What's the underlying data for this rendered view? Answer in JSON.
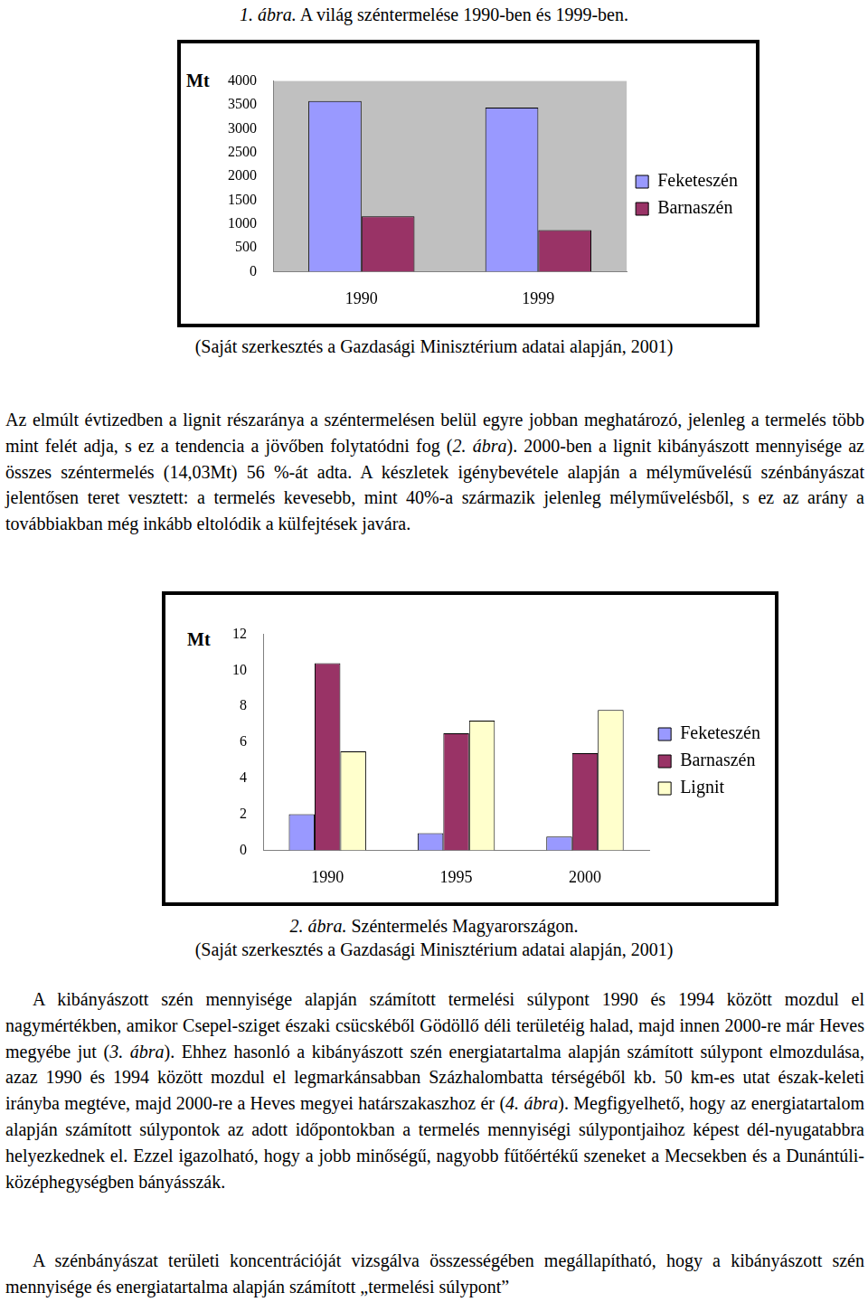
{
  "document": {
    "figure1_caption": [
      {
        "italic": "1.   ábra."
      },
      " A világ széntermelése 1990-ben és 1999-ben."
    ],
    "figure1_source": "(Saját szerkesztés a Gazdasági Minisztérium adatai alapján, 2001)",
    "paragraph1": [
      "Az elmúlt évtizedben a lignit részaránya a széntermelésen belül egyre jobban meghatározó, jelenleg a termelés több mint felét adja, s ez a tendencia a jövőben folytatódni fog (",
      {
        "italic": "2. ábra"
      },
      "). 2000-ben a lignit kibányászott mennyisége az összes széntermelés (14,03Mt) 56 %-át adta. A készletek igénybevétele alapján a mélyművelésű szénbányászat jelentősen teret vesztett: a termelés kevesebb, mint 40%-a származik jelenleg mélyművelésből, s ez az arány a továbbiakban még inkább eltolódik a külfejtések javára."
    ],
    "figure2_caption": [
      {
        "italic": "2. ábra."
      },
      " Széntermelés Magyarországon."
    ],
    "figure2_source": "(Saját szerkesztés a Gazdasági Minisztérium adatai alapján, 2001)",
    "paragraph2": [
      "A kibányászott szén mennyisége alapján számított termelési súlypont 1990 és 1994 között mozdul el nagymértékben, amikor Csepel-sziget északi csücskéből Gödöllő déli területéig halad, majd innen 2000-re már Heves megyébe jut (",
      {
        "italic": "3. ábra"
      },
      "). Ehhez hasonló a kibányászott szén energiatartalma alapján számított súlypont elmozdulása, azaz 1990 és 1994 között mozdul el legmarkánsabban Százhalombatta térségéből kb. 50 km-es utat észak-keleti irányba megtéve, majd 2000-re a Heves megyei határszakaszhoz ér (",
      {
        "italic": "4. ábra"
      },
      "). Megfigyelhető, hogy az energiatartalom alapján számított súlypontok az adott időpontokban a termelés mennyiségi súlypontjaihoz képest dél-nyugatabbra helyezkednek el. Ezzel igazolható, hogy a jobb minőségű, nagyobb fűtőértékű szeneket a Mecsekben és a Dunántúli-középhegységben bányásszák."
    ],
    "paragraph3": [
      "A szénbányászat területi koncentrációját vizsgálva összességében megállapítható, hogy a kibányászott szén mennyisége és energiatartalma alapján számított „termelési súlypont”"
    ]
  },
  "chart_data": [
    {
      "type": "bar",
      "ylabel": "Mt",
      "categories": [
        "1990",
        "1999"
      ],
      "series": [
        {
          "name": "Feketeszén",
          "color": "#9999ff",
          "values": [
            3580,
            3440
          ]
        },
        {
          "name": "Barnaszén",
          "color": "#993366",
          "values": [
            1160,
            870
          ]
        }
      ],
      "ylim": [
        0,
        4000
      ],
      "yticks": [
        0,
        500,
        1000,
        1500,
        2000,
        2500,
        3000,
        3500,
        4000
      ],
      "grid": false,
      "legend": "right"
    },
    {
      "type": "bar",
      "ylabel": "Mt",
      "categories": [
        "1990",
        "1995",
        "2000"
      ],
      "series": [
        {
          "name": "Feketeszén",
          "color": "#9999ff",
          "values": [
            2.0,
            0.95,
            0.76
          ]
        },
        {
          "name": "Barnaszén",
          "color": "#993366",
          "values": [
            10.4,
            6.5,
            5.4
          ]
        },
        {
          "name": "Lignit",
          "color": "#ffffcc",
          "values": [
            5.5,
            7.2,
            7.8
          ]
        }
      ],
      "ylim": [
        0,
        12
      ],
      "yticks": [
        0,
        2,
        4,
        6,
        8,
        10,
        12
      ],
      "grid": false,
      "legend": "right"
    }
  ]
}
